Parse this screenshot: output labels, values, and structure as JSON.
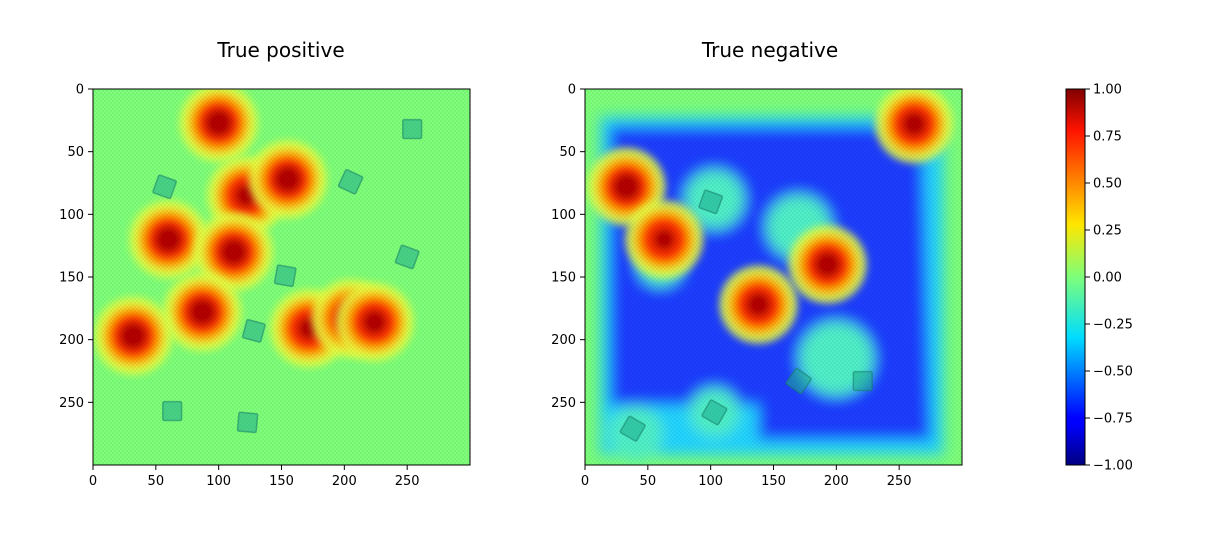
{
  "chart_data": [
    {
      "type": "heatmap",
      "title": "True positive",
      "xlabel": "",
      "ylabel": "",
      "xlim": [
        0,
        300
      ],
      "ylim": [
        300,
        0
      ],
      "xticks": [
        0,
        50,
        100,
        150,
        200,
        250
      ],
      "yticks": [
        0,
        50,
        100,
        150,
        200,
        250
      ],
      "colormap": "jet",
      "value_range": [
        -1.0,
        1.0
      ],
      "background_value": 0.0,
      "hotspots": [
        {
          "x": 100,
          "y": 27,
          "value": 1.0
        },
        {
          "x": 122,
          "y": 85,
          "value": 0.85
        },
        {
          "x": 155,
          "y": 72,
          "value": 1.0
        },
        {
          "x": 60,
          "y": 120,
          "value": 1.0
        },
        {
          "x": 112,
          "y": 130,
          "value": 1.0
        },
        {
          "x": 87,
          "y": 178,
          "value": 1.0
        },
        {
          "x": 32,
          "y": 197,
          "value": 1.0
        },
        {
          "x": 172,
          "y": 191,
          "value": 0.85
        },
        {
          "x": 205,
          "y": 183,
          "value": 0.95
        },
        {
          "x": 224,
          "y": 186,
          "value": 0.9
        }
      ],
      "square_markers": [
        {
          "x": 57,
          "y": 78,
          "angle": 20
        },
        {
          "x": 205,
          "y": 74,
          "angle": 25
        },
        {
          "x": 254,
          "y": 32,
          "angle": 0
        },
        {
          "x": 250,
          "y": 134,
          "angle": 20
        },
        {
          "x": 153,
          "y": 149,
          "angle": 10
        },
        {
          "x": 128,
          "y": 193,
          "angle": 15
        },
        {
          "x": 63,
          "y": 257,
          "angle": 0
        },
        {
          "x": 123,
          "y": 266,
          "angle": 5
        }
      ]
    },
    {
      "type": "heatmap",
      "title": "True negative",
      "xlabel": "",
      "ylabel": "",
      "xlim": [
        0,
        300
      ],
      "ylim": [
        300,
        0
      ],
      "xticks": [
        0,
        50,
        100,
        150,
        200,
        250
      ],
      "yticks": [
        0,
        50,
        100,
        150,
        200,
        250
      ],
      "colormap": "jet",
      "value_range": [
        -1.0,
        1.0
      ],
      "background_value": 0.0,
      "negative_region_value": -0.7,
      "hotspots": [
        {
          "x": 262,
          "y": 28,
          "value": 0.9
        },
        {
          "x": 33,
          "y": 78,
          "value": 1.0
        },
        {
          "x": 63,
          "y": 120,
          "value": 0.8
        },
        {
          "x": 193,
          "y": 140,
          "value": 0.95
        },
        {
          "x": 138,
          "y": 172,
          "value": 0.9
        }
      ],
      "square_markers": [
        {
          "x": 100,
          "y": 90,
          "angle": 20
        },
        {
          "x": 170,
          "y": 233,
          "angle": 35
        },
        {
          "x": 221,
          "y": 233,
          "angle": 0
        },
        {
          "x": 103,
          "y": 258,
          "angle": 30
        },
        {
          "x": 38,
          "y": 271,
          "angle": 30
        }
      ]
    }
  ],
  "colorbar": {
    "colormap": "jet",
    "range": [
      -1.0,
      1.0
    ],
    "ticks": [
      "1.00",
      "0.75",
      "0.50",
      "0.25",
      "0.00",
      "−0.25",
      "−0.50",
      "−0.75",
      "−1.00"
    ]
  }
}
